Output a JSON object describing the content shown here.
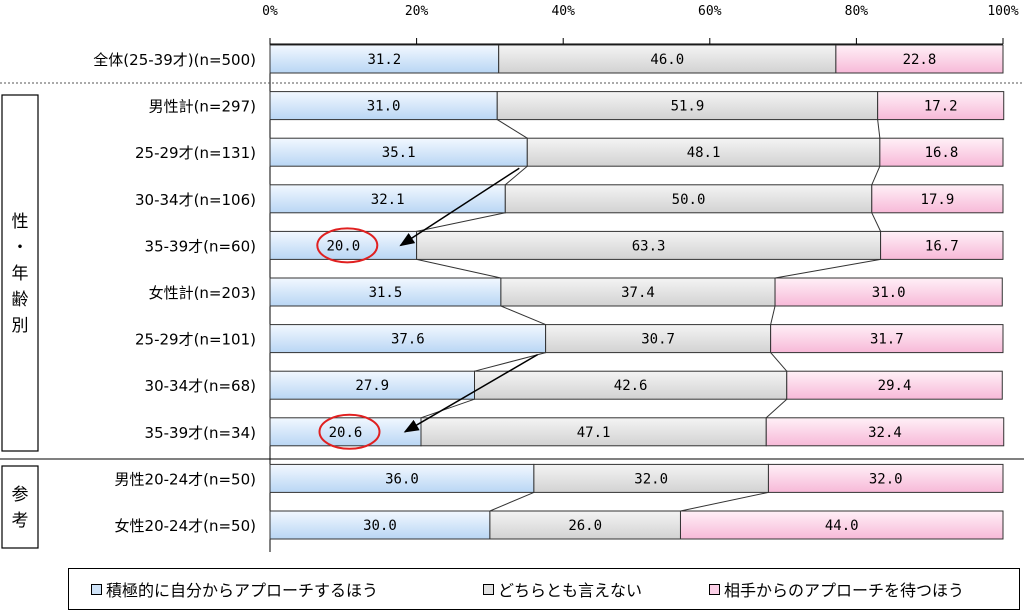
{
  "chart_data": {
    "type": "bar",
    "stacked": "percent",
    "orientation": "horizontal",
    "x_ticks": [
      "0%",
      "20%",
      "40%",
      "60%",
      "80%",
      "100%"
    ],
    "xlim": [
      0,
      100
    ],
    "categories": [
      "全体(25-39才)(n=500)",
      "男性計(n=297)",
      "25-29才(n=131)",
      "30-34才(n=106)",
      "35-39才(n=60)",
      "女性計(n=203)",
      "25-29才(n=101)",
      "30-34才(n=68)",
      "35-39才(n=34)",
      "男性20-24才(n=50)",
      "女性20-24才(n=50)"
    ],
    "series": [
      {
        "name": "積極的に自分からアプローチするほう",
        "color": "#cfe3f8",
        "values": [
          31.2,
          31.0,
          35.1,
          32.1,
          20.0,
          31.5,
          37.6,
          27.9,
          20.6,
          36.0,
          30.0
        ]
      },
      {
        "name": "どちらとも言えない",
        "color": "#e2e2e2",
        "values": [
          46.0,
          51.9,
          48.1,
          50.0,
          63.3,
          37.4,
          30.7,
          42.6,
          47.1,
          32.0,
          26.0
        ]
      },
      {
        "name": "相手からのアプローチを待つほう",
        "color": "#fbcfe6",
        "values": [
          22.8,
          17.2,
          16.8,
          17.9,
          16.7,
          31.0,
          31.7,
          29.4,
          32.4,
          32.0,
          44.0
        ]
      }
    ],
    "group_labels": [
      "性・年齢別",
      "参考"
    ],
    "highlighted_values": [
      "20.0",
      "20.6"
    ]
  }
}
